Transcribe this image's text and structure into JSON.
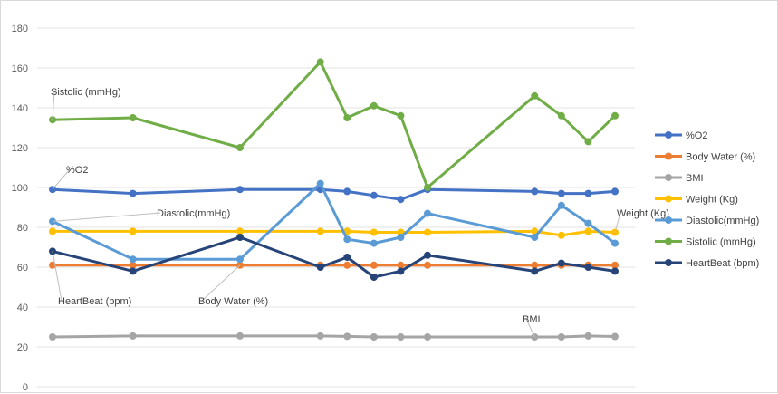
{
  "chart_data": {
    "type": "line",
    "title": "",
    "xlabel": "",
    "ylabel": "",
    "ylim": [
      0,
      180
    ],
    "yticks": [
      0,
      20,
      40,
      60,
      80,
      100,
      120,
      140,
      160,
      180
    ],
    "x": [
      1,
      4,
      8,
      11,
      12,
      13,
      14,
      15,
      19,
      20,
      21,
      22
    ],
    "grid": "horizontal",
    "legend_position": "right",
    "series": [
      {
        "name": "%O2",
        "color": "#4472c4",
        "values": [
          99,
          97,
          99,
          99,
          98,
          96,
          94,
          99,
          98,
          97,
          97,
          98
        ]
      },
      {
        "name": "Body Water (%)",
        "color": "#ed7d31",
        "values": [
          61,
          61,
          61,
          61,
          61,
          61,
          61,
          61,
          61,
          61,
          61,
          61
        ]
      },
      {
        "name": "BMI",
        "color": "#a5a5a5",
        "values": [
          25,
          25.5,
          25.5,
          25.5,
          25.3,
          25,
          25,
          25,
          25,
          25,
          25.5,
          25.2
        ]
      },
      {
        "name": "Weight (Kg)",
        "color": "#ffc000",
        "values": [
          78,
          78,
          78,
          78,
          78,
          77.5,
          77.5,
          77.5,
          78,
          76,
          78,
          77.5
        ]
      },
      {
        "name": "Diastolic(mmHg)",
        "color": "#5b9bd5",
        "values": [
          83,
          64,
          64,
          102,
          74,
          72,
          75,
          87,
          75,
          91,
          82,
          72
        ]
      },
      {
        "name": "Sistolic (mmHg)",
        "color": "#70ad47",
        "values": [
          134,
          135,
          120,
          163,
          135,
          141,
          136,
          100,
          146,
          136,
          123,
          136
        ]
      },
      {
        "name": "HeartBeat (bpm)",
        "color": "#264478",
        "values": [
          68,
          58,
          75,
          60,
          65,
          55,
          58,
          66,
          58,
          62,
          60,
          58
        ]
      }
    ],
    "annotations": [
      {
        "text": "Sistolic (mmHg)",
        "series": "Sistolic (mmHg)",
        "point": 0
      },
      {
        "text": "%O2",
        "series": "%O2",
        "point": 0
      },
      {
        "text": "Diastolic(mmHg)",
        "series": "Diastolic(mmHg)",
        "point": 0
      },
      {
        "text": "HeartBeat (bpm)",
        "series": "HeartBeat (bpm)",
        "point": 0
      },
      {
        "text": "Body Water (%)",
        "series": "Body Water (%)",
        "point": 2
      },
      {
        "text": "BMI",
        "series": "BMI",
        "point": 8
      },
      {
        "text": "Weight (Kg)",
        "series": "Weight (Kg)",
        "point": 11
      }
    ]
  }
}
